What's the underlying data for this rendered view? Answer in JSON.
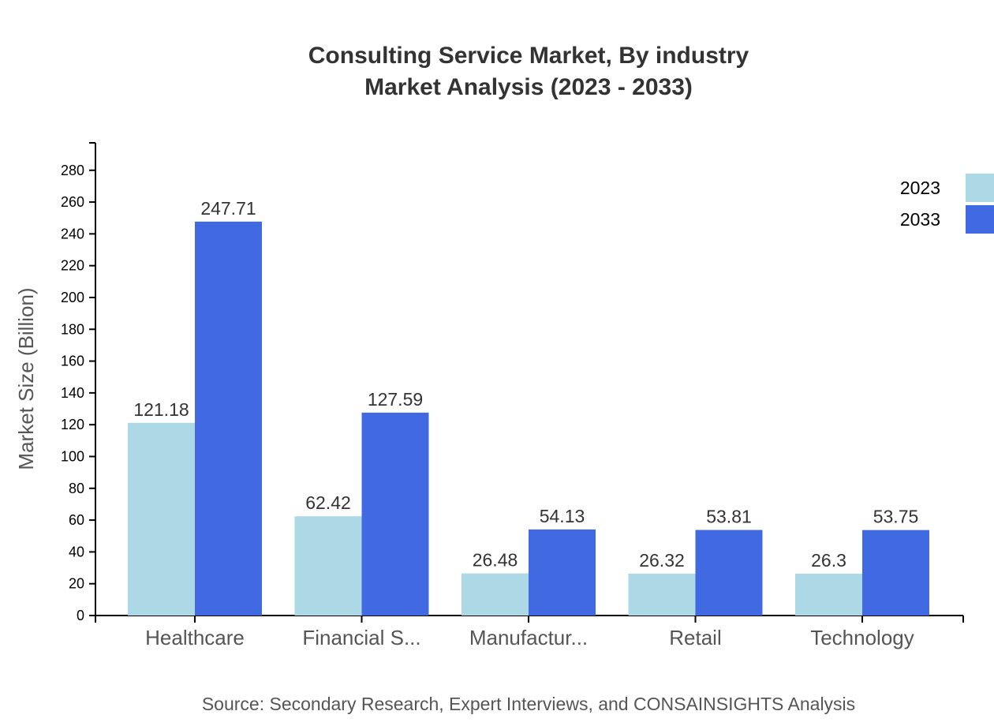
{
  "chart_data": {
    "type": "bar",
    "title": "Consulting Service Market, By industry",
    "subtitle": "Market Analysis (2023 - 2033)",
    "xlabel": "",
    "ylabel": "Market Size (Billion)",
    "source": "Source: Secondary Research, Expert Interviews, and CONSAINSIGHTS Analysis",
    "categories": [
      "Healthcare",
      "Financial S...",
      "Manufactur...",
      "Retail",
      "Technology"
    ],
    "series": [
      {
        "name": "2023",
        "color": "#ADD8E6",
        "values": [
          121.18,
          62.42,
          26.48,
          26.32,
          26.3
        ]
      },
      {
        "name": "2033",
        "color": "#4169E1",
        "values": [
          247.71,
          127.59,
          54.13,
          53.81,
          53.75
        ]
      }
    ],
    "ylim": [
      0,
      297.25
    ],
    "yticks": [
      0,
      20,
      40,
      60,
      80,
      100,
      120,
      140,
      160,
      180,
      200,
      220,
      240,
      260,
      280
    ],
    "grid": false,
    "legend": "top-right"
  }
}
